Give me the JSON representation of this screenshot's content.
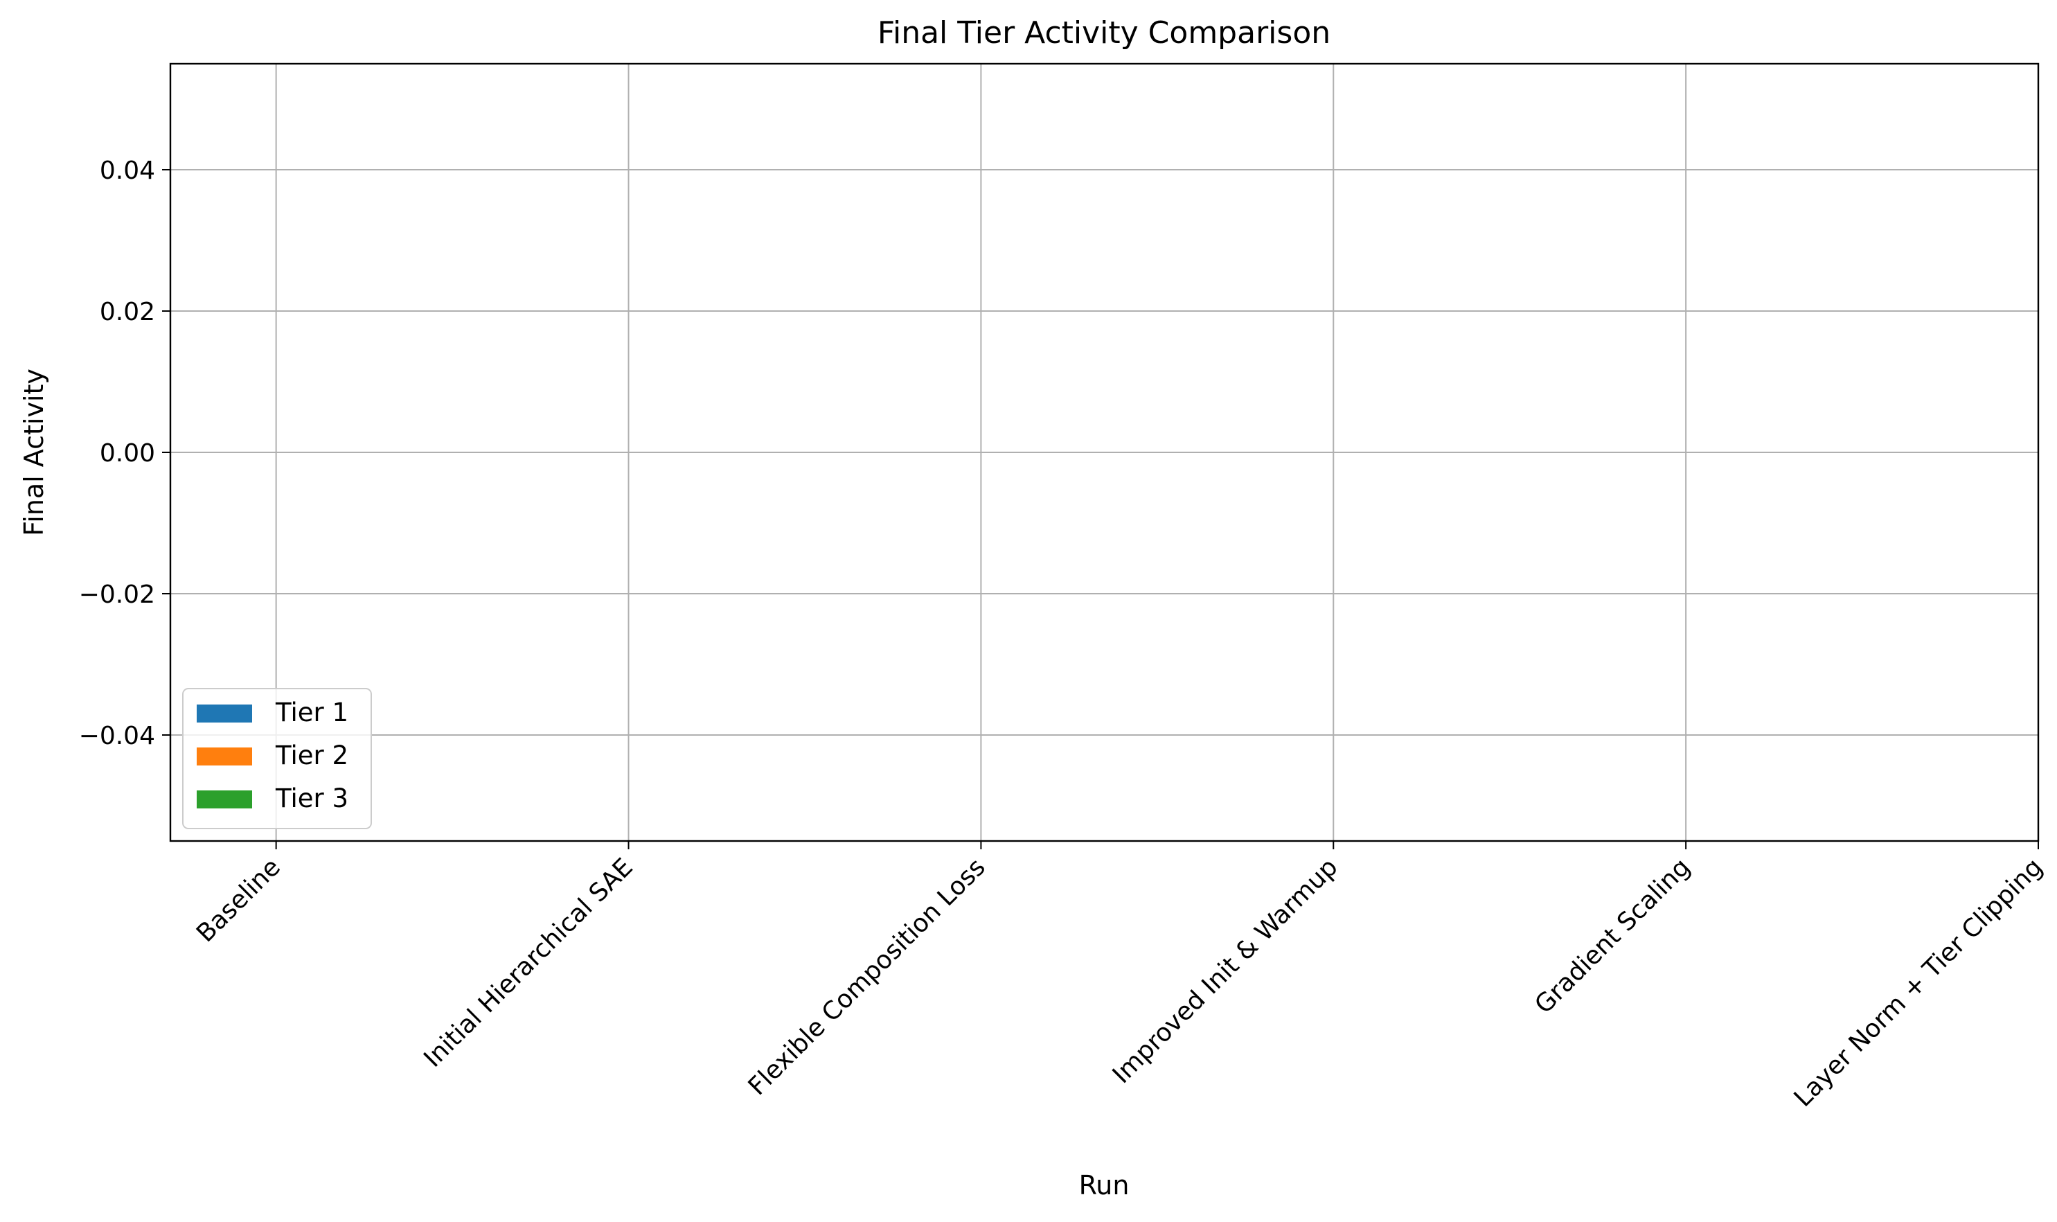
{
  "chart_data": {
    "type": "bar",
    "title": "Final Tier Activity Comparison",
    "xlabel": "Run",
    "ylabel": "Final Activity",
    "categories": [
      "Baseline",
      "Initial Hierarchical SAE",
      "Flexible Composition Loss",
      "Improved Init & Warmup",
      "Gradient Scaling",
      "Layer Norm + Tier Clipping"
    ],
    "series": [
      {
        "name": "Tier 1",
        "color": "#1f77b4",
        "values": [
          0,
          0,
          0,
          0,
          0,
          0
        ]
      },
      {
        "name": "Tier 2",
        "color": "#ff7f0e",
        "values": [
          0,
          0,
          0,
          0,
          0,
          0
        ]
      },
      {
        "name": "Tier 3",
        "color": "#2ca02c",
        "values": [
          0,
          0,
          0,
          0,
          0,
          0
        ]
      }
    ],
    "ylim": [
      -0.055,
      0.055
    ],
    "yticks": [
      -0.04,
      -0.02,
      0.0,
      0.02,
      0.04
    ],
    "ytick_labels": [
      "−0.04",
      "−0.02",
      "0.00",
      "0.02",
      "0.04"
    ],
    "xlim": [
      -0.3,
      5.0
    ],
    "grid": true,
    "legend_position": "lower-left"
  }
}
